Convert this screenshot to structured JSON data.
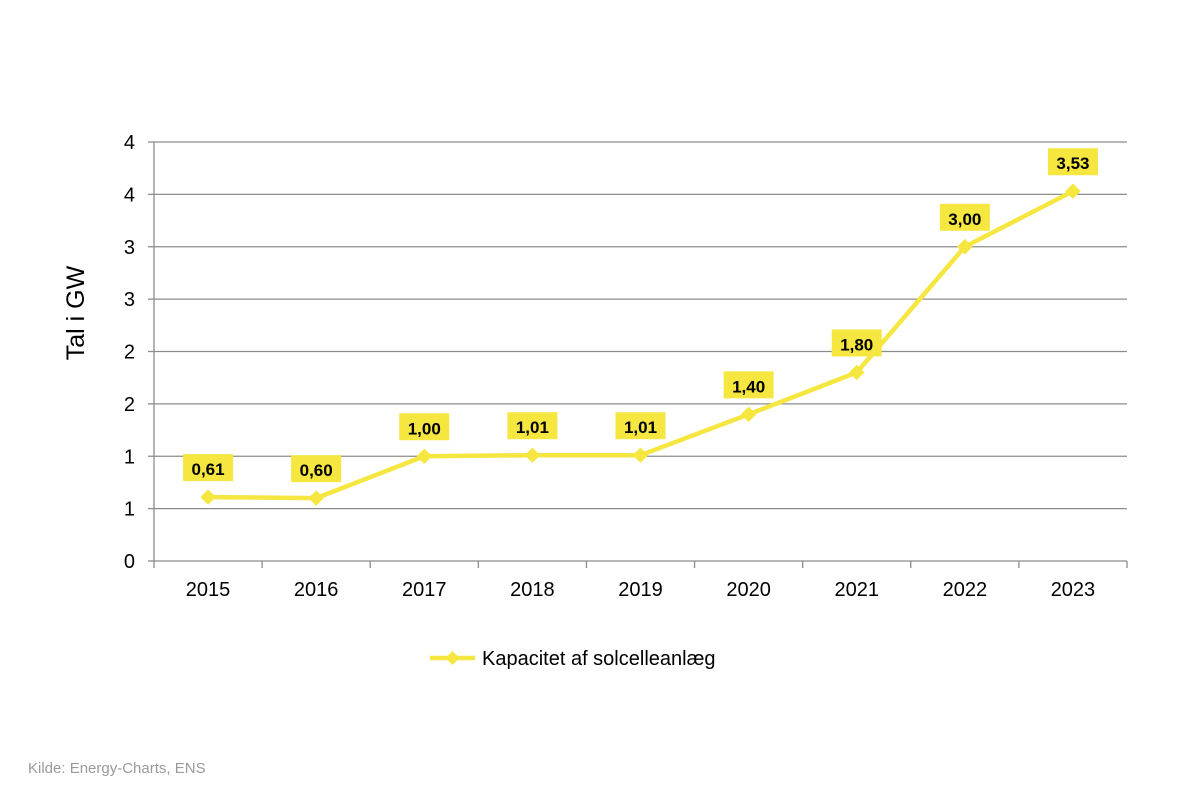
{
  "chart_data": {
    "type": "line",
    "title": "",
    "xlabel": "",
    "ylabel": "Tal i GW",
    "ylim": [
      0,
      4
    ],
    "y_ticks": [
      0,
      0.5,
      1,
      1.5,
      2,
      2.5,
      3,
      3.5,
      4
    ],
    "y_tick_labels": [
      "0",
      "1",
      "1",
      "2",
      "2",
      "3",
      "3",
      "4",
      "4"
    ],
    "grid": true,
    "categories": [
      "2015",
      "2016",
      "2017",
      "2018",
      "2019",
      "2020",
      "2021",
      "2022",
      "2023"
    ],
    "series": [
      {
        "name": "Kapacitet af solcelleanlæg",
        "values": [
          0.61,
          0.6,
          1.0,
          1.01,
          1.01,
          1.4,
          1.8,
          3.0,
          3.53
        ],
        "labels": [
          "0,61",
          "0,60",
          "1,00",
          "1,01",
          "1,01",
          "1,40",
          "1,80",
          "3,00",
          "3,53"
        ],
        "color": "#f5e640"
      }
    ],
    "legend_position": "bottom"
  },
  "colors": {
    "series": "#f5e640",
    "label_box": "#f5e640",
    "grid": "#8c8c8c",
    "axis": "#8c8c8c"
  },
  "source": "Kilde: Energy-Charts, ENS"
}
